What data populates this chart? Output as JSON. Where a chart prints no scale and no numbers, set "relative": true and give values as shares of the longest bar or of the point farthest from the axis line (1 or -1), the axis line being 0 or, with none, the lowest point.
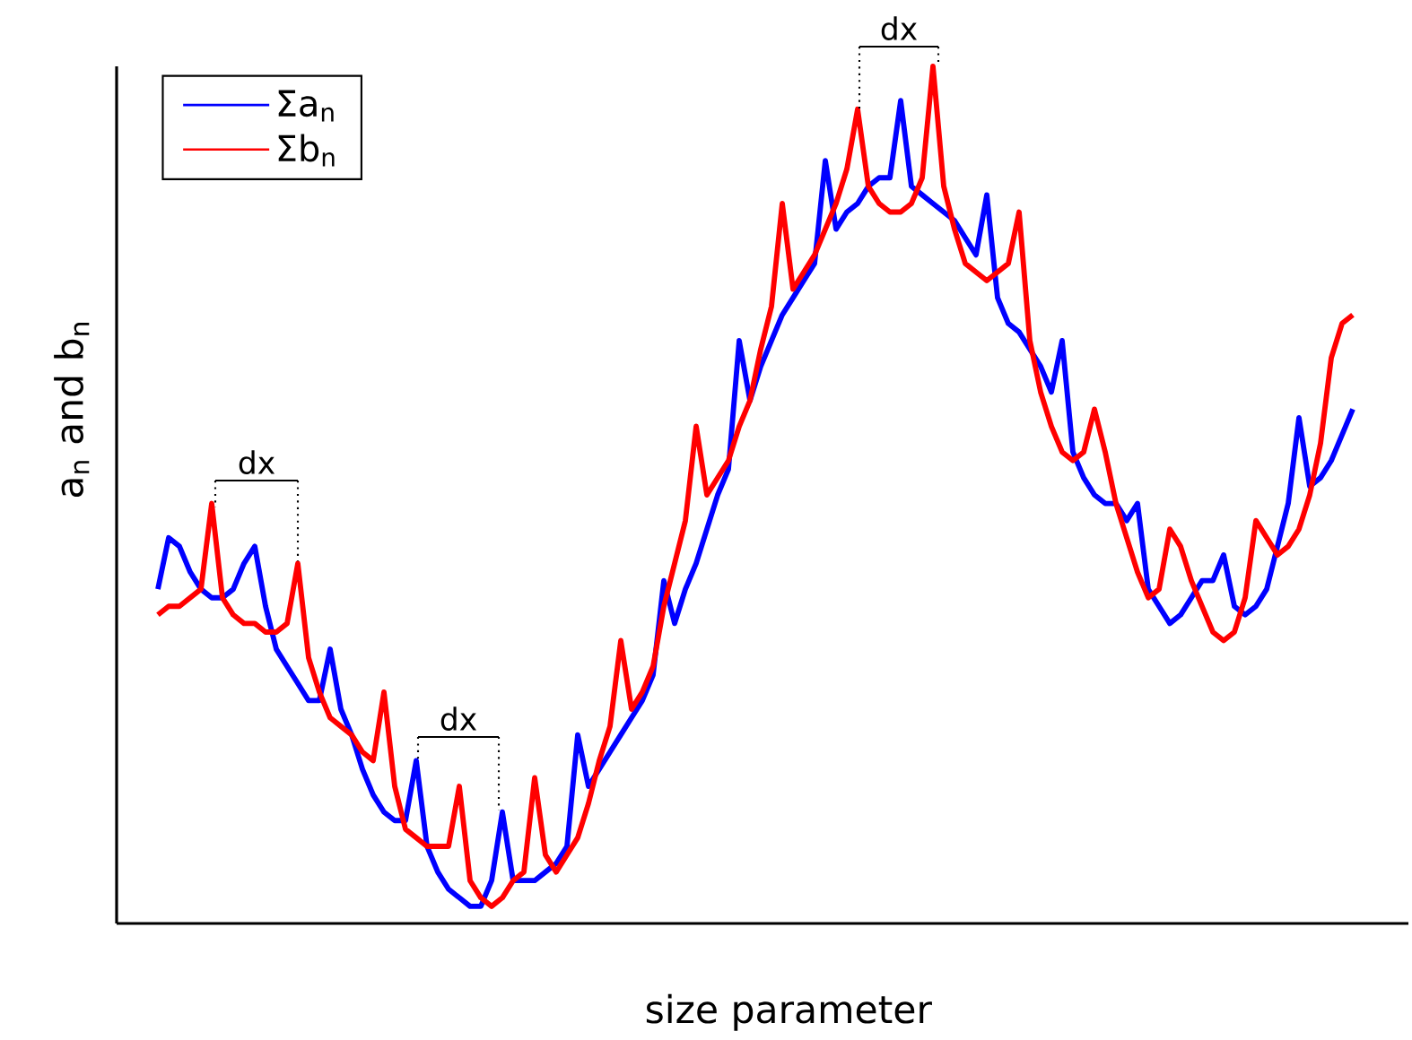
{
  "chart_data": {
    "type": "line",
    "relative": true,
    "xlabel": "size parameter",
    "ylabel": "a$_{n}$ and b$_{n}$",
    "legend": "top left",
    "annotations": [
      "dx",
      "dx",
      "dx"
    ],
    "categories": [
      null,
      null,
      null,
      null,
      null,
      null,
      null,
      null,
      null,
      null,
      null,
      null,
      null,
      null,
      null,
      null,
      null,
      null,
      null,
      null,
      null,
      null,
      null,
      null,
      null,
      null,
      null,
      null,
      null,
      null,
      null,
      null,
      null,
      null,
      null,
      null,
      null,
      null,
      null,
      null,
      null,
      null,
      null,
      null,
      null,
      null,
      null,
      null,
      null,
      null,
      null,
      null,
      null,
      null,
      null,
      null,
      null,
      null,
      null,
      null,
      null,
      null,
      null,
      null,
      null,
      null,
      null,
      null,
      null,
      null,
      null,
      null,
      null,
      null,
      null,
      null,
      null,
      null,
      null,
      null,
      null,
      null,
      null,
      null,
      null,
      null,
      null,
      null,
      null,
      null,
      null,
      null,
      null,
      null,
      null,
      null,
      null,
      null,
      null,
      null,
      null,
      null,
      null,
      null,
      null,
      null,
      null,
      null,
      null,
      null,
      null,
      null
    ],
    "series": [
      {
        "name": "Σa$_{n}$",
        "color": "#0000ff",
        "values": [
          0.39,
          0.45,
          0.44,
          0.41,
          0.39,
          0.38,
          0.38,
          0.39,
          0.42,
          0.44,
          0.37,
          0.32,
          0.3,
          0.28,
          0.26,
          0.26,
          0.32,
          0.25,
          0.22,
          0.18,
          0.15,
          0.13,
          0.12,
          0.12,
          0.19,
          0.09,
          0.06,
          0.04,
          0.03,
          0.02,
          0.02,
          0.05,
          0.13,
          0.05,
          0.05,
          0.05,
          0.06,
          0.07,
          0.09,
          0.22,
          0.16,
          0.18,
          0.2,
          0.22,
          0.24,
          0.26,
          0.29,
          0.4,
          0.35,
          0.39,
          0.42,
          0.46,
          0.5,
          0.53,
          0.68,
          0.61,
          0.65,
          0.68,
          0.71,
          0.73,
          0.75,
          0.77,
          0.89,
          0.81,
          0.83,
          0.84,
          0.86,
          0.87,
          0.87,
          0.96,
          0.86,
          0.85,
          0.84,
          0.83,
          0.82,
          0.8,
          0.78,
          0.85,
          0.73,
          0.7,
          0.69,
          0.67,
          0.65,
          0.62,
          0.68,
          0.55,
          0.52,
          0.5,
          0.49,
          0.49,
          0.47,
          0.49,
          0.39,
          0.37,
          0.35,
          0.36,
          0.38,
          0.4,
          0.4,
          0.43,
          0.37,
          0.36,
          0.37,
          0.39,
          0.44,
          0.49,
          0.59,
          0.51,
          0.52,
          0.54,
          0.57,
          0.6
        ]
      },
      {
        "name": "Σb$_{n}$",
        "color": "#ff0000",
        "values": [
          0.36,
          0.37,
          0.37,
          0.38,
          0.39,
          0.49,
          0.38,
          0.36,
          0.35,
          0.35,
          0.34,
          0.34,
          0.35,
          0.42,
          0.31,
          0.27,
          0.24,
          0.23,
          0.22,
          0.2,
          0.19,
          0.27,
          0.16,
          0.11,
          0.1,
          0.09,
          0.09,
          0.09,
          0.16,
          0.05,
          0.03,
          0.02,
          0.03,
          0.05,
          0.06,
          0.17,
          0.08,
          0.06,
          0.08,
          0.1,
          0.14,
          0.19,
          0.23,
          0.33,
          0.25,
          0.27,
          0.3,
          0.37,
          0.42,
          0.47,
          0.58,
          0.5,
          0.52,
          0.54,
          0.58,
          0.61,
          0.67,
          0.72,
          0.84,
          0.74,
          0.76,
          0.78,
          0.81,
          0.84,
          0.88,
          0.95,
          0.86,
          0.84,
          0.83,
          0.83,
          0.84,
          0.87,
          1,
          0.86,
          0.81,
          0.77,
          0.76,
          0.75,
          0.76,
          0.77,
          0.83,
          0.68,
          0.62,
          0.58,
          0.55,
          0.54,
          0.55,
          0.6,
          0.55,
          0.49,
          0.45,
          0.41,
          0.38,
          0.39,
          0.46,
          0.44,
          0.4,
          0.37,
          0.34,
          0.33,
          0.34,
          0.38,
          0.47,
          0.45,
          0.43,
          0.44,
          0.46,
          0.5,
          0.56,
          0.66,
          0.7,
          0.71
        ]
      }
    ]
  }
}
